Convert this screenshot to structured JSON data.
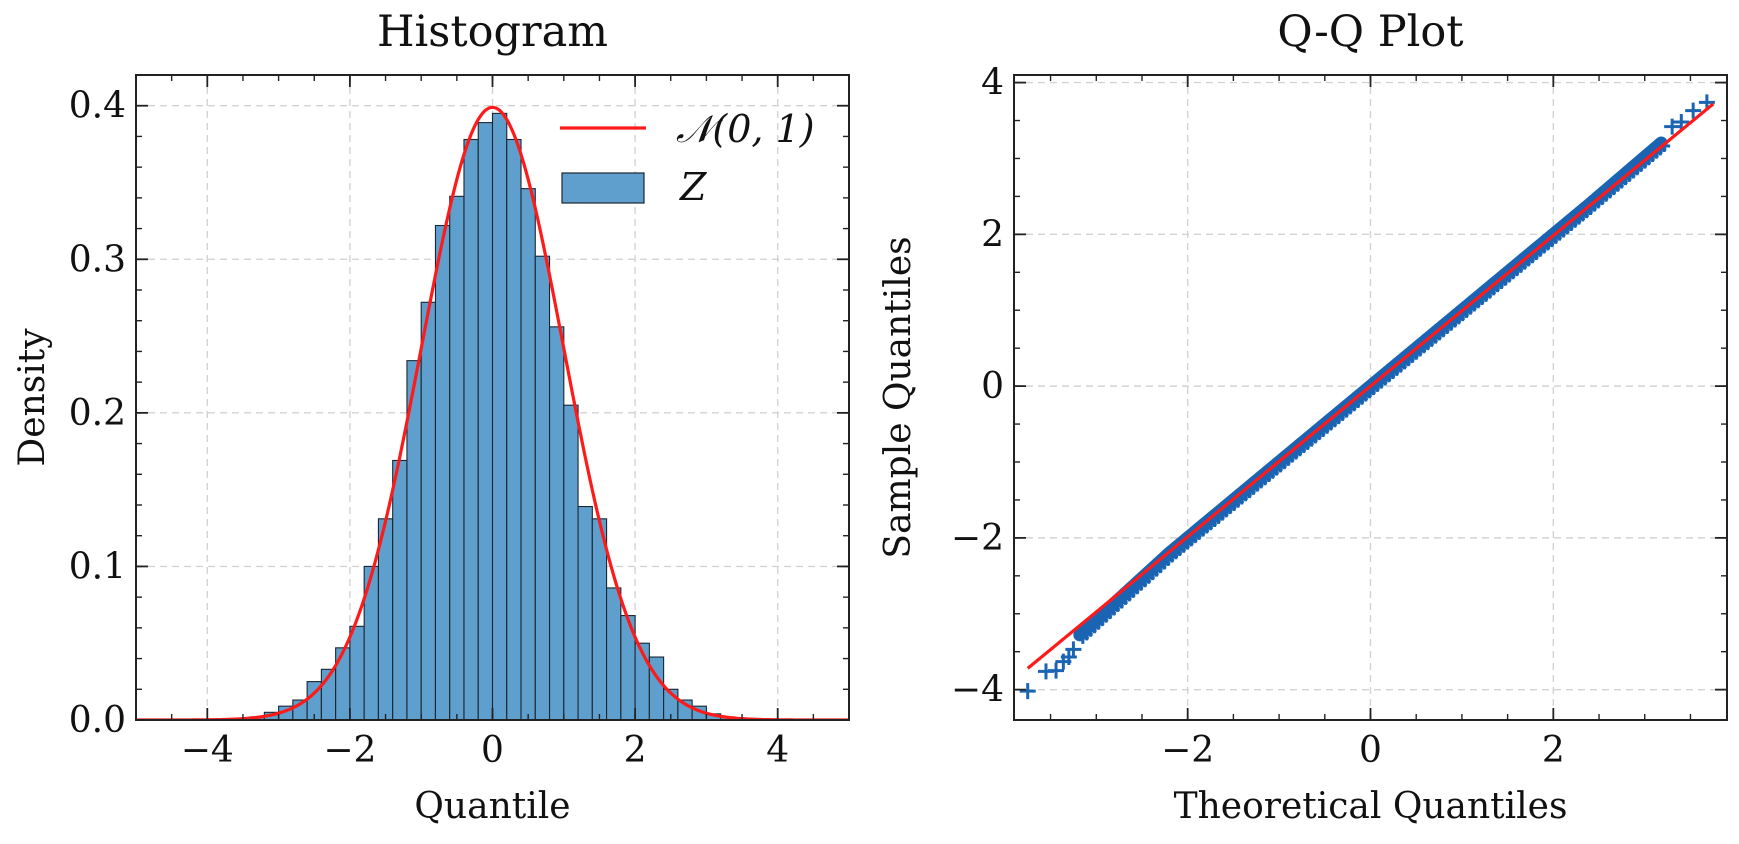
{
  "colors": {
    "bar_fill": "#5f9fcd",
    "bar_edge": "#1b2630",
    "normal_curve": "#ff1a1a",
    "qq_points": "#1a64b3",
    "reference_line": "#ff1a1a",
    "grid": "#d3d3d3"
  },
  "chart_data": [
    {
      "type": "bar",
      "title": "Histogram",
      "xlabel": "Quantile",
      "ylabel": "Density",
      "xlim": [
        -5,
        5
      ],
      "ylim": [
        0,
        0.42
      ],
      "xticks": [
        -4,
        -2,
        0,
        2,
        4
      ],
      "xtick_labels": [
        "−4",
        "−2",
        "0",
        "2",
        "4"
      ],
      "yticks": [
        0.0,
        0.1,
        0.2,
        0.3,
        0.4
      ],
      "ytick_labels": [
        "0.0",
        "0.1",
        "0.2",
        "0.3",
        "0.4"
      ],
      "grid": true,
      "legend_position": "top-right",
      "bin_edges": [
        -3.4,
        -3.2,
        -3.0,
        -2.8,
        -2.6,
        -2.4,
        -2.2,
        -2.0,
        -1.8,
        -1.6,
        -1.4,
        -1.2,
        -1.0,
        -0.8,
        -0.6,
        -0.4,
        -0.2,
        0.0,
        0.2,
        0.4,
        0.6,
        0.8,
        1.0,
        1.2,
        1.4,
        1.6,
        1.8,
        2.0,
        2.2,
        2.4,
        2.6,
        2.8,
        3.0,
        3.2,
        3.4
      ],
      "bin_values": [
        0.002,
        0.005,
        0.009,
        0.013,
        0.025,
        0.033,
        0.047,
        0.061,
        0.1,
        0.131,
        0.169,
        0.234,
        0.272,
        0.322,
        0.341,
        0.378,
        0.389,
        0.395,
        0.378,
        0.346,
        0.302,
        0.256,
        0.205,
        0.139,
        0.131,
        0.086,
        0.068,
        0.05,
        0.041,
        0.02,
        0.013,
        0.009,
        0.004,
        0.002
      ],
      "series": [
        {
          "name": "𝒩(0, 1)",
          "kind": "line",
          "function": "standard normal pdf"
        },
        {
          "name": "Z",
          "kind": "bar"
        }
      ]
    },
    {
      "type": "scatter",
      "title": "Q-Q Plot",
      "xlabel": "Theoretical Quantiles",
      "ylabel": "Sample Quantiles",
      "xlim": [
        -3.9,
        3.9
      ],
      "ylim": [
        -4.4,
        4.1
      ],
      "xticks": [
        -2,
        0,
        2
      ],
      "xtick_labels": [
        "−2",
        "0",
        "2"
      ],
      "yticks": [
        -4,
        -2,
        0,
        2,
        4
      ],
      "ytick_labels": [
        "−4",
        "−2",
        "0",
        "2",
        "4"
      ],
      "grid": true,
      "reference_line": {
        "x": [
          -3.75,
          3.75
        ],
        "y": [
          -3.72,
          3.72
        ]
      },
      "theoretical_range": [
        -3.75,
        3.75
      ],
      "outliers": [
        {
          "x": -3.75,
          "y": -4.02
        },
        {
          "x": -3.55,
          "y": -3.76
        },
        {
          "x": -3.44,
          "y": -3.75
        },
        {
          "x": -3.36,
          "y": -3.63
        },
        {
          "x": -3.3,
          "y": -3.57
        },
        {
          "x": -3.25,
          "y": -3.47
        },
        {
          "x": 3.3,
          "y": 3.42
        },
        {
          "x": 3.4,
          "y": 3.48
        },
        {
          "x": 3.53,
          "y": 3.63
        },
        {
          "x": 3.68,
          "y": 3.74
        }
      ]
    }
  ]
}
